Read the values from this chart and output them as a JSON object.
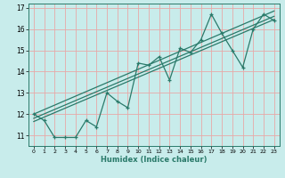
{
  "xlabel": "Humidex (Indice chaleur)",
  "background_color": "#c8eceb",
  "grid_color": "#e8a8a8",
  "line_color": "#2a7a6a",
  "xlim": [
    -0.5,
    23.5
  ],
  "ylim": [
    10.5,
    17.2
  ],
  "xticks": [
    0,
    1,
    2,
    3,
    4,
    5,
    6,
    7,
    8,
    9,
    10,
    11,
    12,
    13,
    14,
    15,
    16,
    17,
    18,
    19,
    20,
    21,
    22,
    23
  ],
  "yticks": [
    11,
    12,
    13,
    14,
    15,
    16,
    17
  ],
  "series1_x": [
    0,
    1,
    2,
    3,
    4,
    5,
    6,
    7,
    8,
    9,
    10,
    11,
    12,
    13,
    14,
    15,
    16,
    17,
    18,
    19,
    20,
    21,
    22,
    23
  ],
  "series1_y": [
    12.0,
    11.7,
    10.9,
    10.9,
    10.9,
    11.7,
    11.4,
    13.0,
    12.6,
    12.3,
    14.4,
    14.3,
    14.7,
    13.6,
    15.1,
    14.9,
    15.5,
    16.7,
    15.8,
    15.0,
    14.2,
    16.0,
    16.7,
    16.4
  ],
  "line2_x": [
    0,
    23
  ],
  "line2_y": [
    11.65,
    16.45
  ],
  "line3_x": [
    0,
    23
  ],
  "line3_y": [
    11.8,
    16.6
  ],
  "line4_x": [
    0,
    23
  ],
  "line4_y": [
    12.0,
    16.85
  ]
}
